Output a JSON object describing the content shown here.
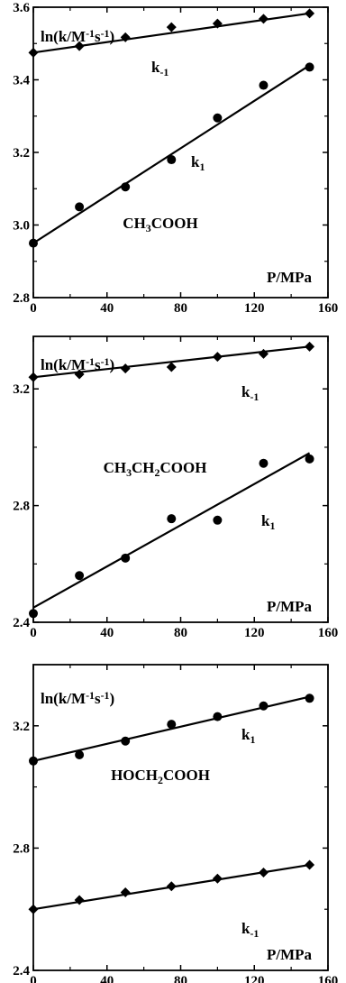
{
  "chart_data": [
    {
      "type": "scatter",
      "ylabel": "ln(k/M⁻¹s⁻¹)",
      "xlabel": "P/MPa",
      "compound": "CH₃COOH",
      "xlim": [
        0,
        160
      ],
      "ylim": [
        2.8,
        3.6
      ],
      "xticks": [
        0,
        40,
        80,
        120,
        160
      ],
      "yticks": [
        2.8,
        3.0,
        3.2,
        3.4,
        3.6
      ],
      "x": [
        0,
        25,
        50,
        75,
        100,
        125,
        150
      ],
      "series": [
        {
          "name": "k₋₁",
          "marker": "diamond",
          "values": [
            3.475,
            3.493,
            3.517,
            3.545,
            3.555,
            3.568,
            3.583
          ],
          "fit": [
            3.475,
            3.583
          ]
        },
        {
          "name": "k₁",
          "marker": "circle",
          "values": [
            2.95,
            3.05,
            3.105,
            3.18,
            3.295,
            3.385,
            3.435
          ],
          "fit": [
            2.95,
            3.44
          ]
        }
      ]
    },
    {
      "type": "scatter",
      "ylabel": "ln(k/M⁻¹s⁻¹)",
      "xlabel": "P/MPa",
      "compound": "CH₃CH₂COOH",
      "xlim": [
        0,
        160
      ],
      "ylim": [
        2.4,
        3.38
      ],
      "xticks": [
        0,
        40,
        80,
        120,
        160
      ],
      "yticks": [
        2.4,
        2.8,
        3.2
      ],
      "x": [
        0,
        25,
        50,
        75,
        100,
        125,
        150
      ],
      "series": [
        {
          "name": "k₋₁",
          "marker": "diamond",
          "values": [
            3.24,
            3.25,
            3.27,
            3.275,
            3.31,
            3.32,
            3.345
          ],
          "fit": [
            3.24,
            3.345
          ]
        },
        {
          "name": "k₁",
          "marker": "circle",
          "values": [
            2.43,
            2.56,
            2.62,
            2.755,
            2.75,
            2.945,
            2.96
          ],
          "fit": [
            2.45,
            2.98
          ]
        }
      ]
    },
    {
      "type": "scatter",
      "ylabel": "ln(k/M⁻¹s⁻¹)",
      "xlabel": "P/MPa",
      "compound": "HOCH₂COOH",
      "xlim": [
        0,
        160
      ],
      "ylim": [
        2.4,
        3.4
      ],
      "xticks": [
        0,
        40,
        80,
        120,
        160
      ],
      "yticks": [
        2.4,
        2.8,
        3.2
      ],
      "x": [
        0,
        25,
        50,
        75,
        100,
        125,
        150
      ],
      "series": [
        {
          "name": "k₁",
          "marker": "circle",
          "values": [
            3.085,
            3.105,
            3.15,
            3.205,
            3.23,
            3.265,
            3.29
          ],
          "fit": [
            3.085,
            3.295
          ]
        },
        {
          "name": "k₋₁",
          "marker": "diamond",
          "values": [
            2.6,
            2.63,
            2.655,
            2.675,
            2.7,
            2.72,
            2.745
          ],
          "fit": [
            2.6,
            2.745
          ]
        }
      ]
    }
  ]
}
